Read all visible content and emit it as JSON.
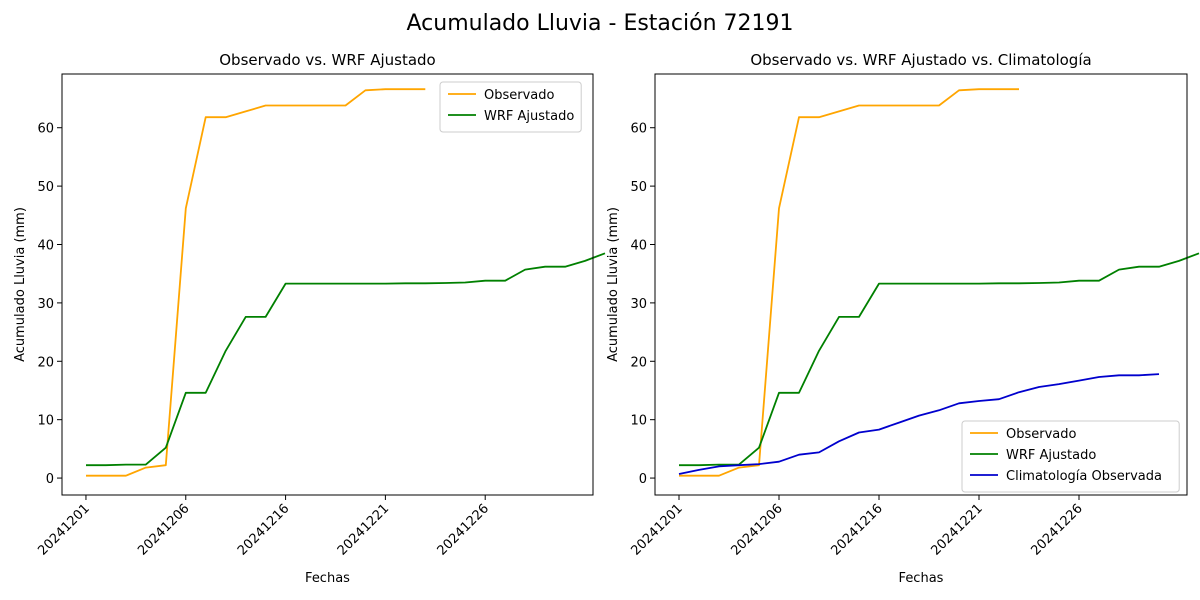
{
  "suptitle": "Acumulado Lluvia - Estación 72191",
  "colors": {
    "observado": "#ffa500",
    "wrf": "#008000",
    "clima": "#0000cd"
  },
  "chart_data": [
    {
      "type": "line",
      "title": "Observado vs. WRF Ajustado",
      "xlabel": "Fechas",
      "ylabel": "Acumulado Lluvia (mm)",
      "x_ticks": [
        "20241201",
        "20241206",
        "20241216",
        "20241221",
        "20241226"
      ],
      "y_ticks": [
        0,
        10,
        20,
        30,
        40,
        50,
        60
      ],
      "ylim": [
        -2.9,
        69.2
      ],
      "legend": "top-right",
      "series": [
        {
          "name": "Observado",
          "color": "#ffa500",
          "values": [
            0.4,
            0.4,
            0.4,
            1.8,
            2.2,
            46.2,
            61.8,
            61.8,
            62.8,
            63.8,
            63.8,
            63.8,
            63.8,
            63.8,
            66.4,
            66.6,
            66.6,
            66.6
          ]
        },
        {
          "name": "WRF Ajustado",
          "color": "#008000",
          "values": [
            2.2,
            2.2,
            2.3,
            2.3,
            5.2,
            14.6,
            14.6,
            21.8,
            27.6,
            27.6,
            33.3,
            33.3,
            33.3,
            33.3,
            33.3,
            33.3,
            33.35,
            33.35,
            33.4,
            33.5,
            33.8,
            33.8,
            35.7,
            36.2,
            36.2,
            37.2,
            38.5
          ]
        }
      ]
    },
    {
      "type": "line",
      "title": "Observado vs. WRF Ajustado vs. Climatología",
      "xlabel": "Fechas",
      "ylabel": "Acumulado Lluvia (mm)",
      "x_ticks": [
        "20241201",
        "20241206",
        "20241216",
        "20241221",
        "20241226"
      ],
      "y_ticks": [
        0,
        10,
        20,
        30,
        40,
        50,
        60
      ],
      "ylim": [
        -2.9,
        69.2
      ],
      "legend": "bottom-right",
      "series": [
        {
          "name": "Observado",
          "color": "#ffa500",
          "values": [
            0.4,
            0.4,
            0.4,
            1.8,
            2.2,
            46.2,
            61.8,
            61.8,
            62.8,
            63.8,
            63.8,
            63.8,
            63.8,
            63.8,
            66.4,
            66.6,
            66.6,
            66.6
          ]
        },
        {
          "name": "WRF Ajustado",
          "color": "#008000",
          "values": [
            2.2,
            2.2,
            2.3,
            2.3,
            5.2,
            14.6,
            14.6,
            21.8,
            27.6,
            27.6,
            33.3,
            33.3,
            33.3,
            33.3,
            33.3,
            33.3,
            33.35,
            33.35,
            33.4,
            33.5,
            33.8,
            33.8,
            35.7,
            36.2,
            36.2,
            37.2,
            38.5
          ]
        },
        {
          "name": "Climatología Observada",
          "color": "#0000cd",
          "values": [
            0.7,
            1.4,
            2.0,
            2.2,
            2.4,
            2.8,
            4.0,
            4.4,
            6.3,
            7.8,
            8.3,
            9.5,
            10.7,
            11.6,
            12.8,
            13.2,
            13.5,
            14.7,
            15.6,
            16.1,
            16.7,
            17.3,
            17.6,
            17.6,
            17.8
          ]
        }
      ]
    }
  ]
}
